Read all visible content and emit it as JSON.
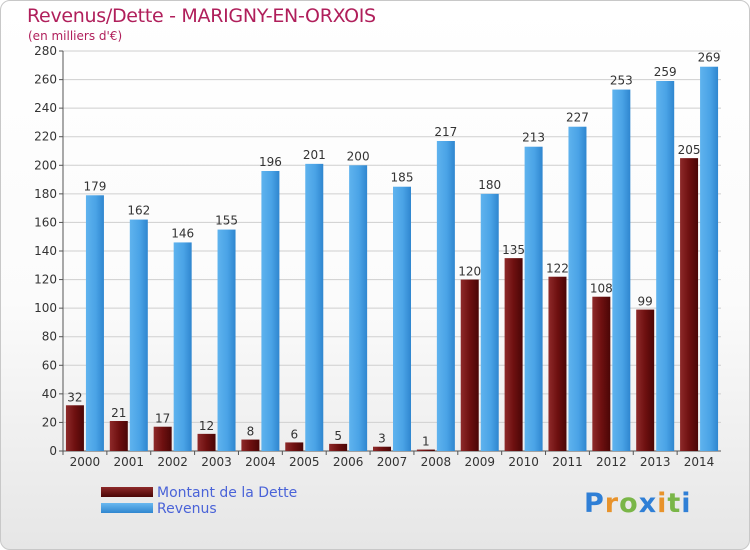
{
  "title": "Revenus/Dette - MARIGNY-EN-ORXOIS",
  "subtitle": "(en milliers d'€)",
  "logo": "Proxiti",
  "colors": {
    "dette": "#7a1414",
    "revenus": "#4aa3e6",
    "title": "#b01f5b",
    "legend_text": "#4a63d8"
  },
  "chart_data": {
    "type": "bar",
    "categories": [
      "2000",
      "2001",
      "2002",
      "2003",
      "2004",
      "2005",
      "2006",
      "2007",
      "2008",
      "2009",
      "2010",
      "2011",
      "2012",
      "2013",
      "2014"
    ],
    "series": [
      {
        "name": "Montant de la Dette",
        "values": [
          32,
          21,
          17,
          12,
          8,
          6,
          5,
          3,
          1,
          120,
          135,
          122,
          108,
          99,
          205
        ]
      },
      {
        "name": "Revenus",
        "values": [
          179,
          162,
          146,
          155,
          196,
          201,
          200,
          185,
          217,
          180,
          213,
          227,
          253,
          259,
          269
        ]
      }
    ],
    "ylim": [
      0,
      280
    ],
    "yticks": [
      0,
      20,
      40,
      60,
      80,
      100,
      120,
      140,
      160,
      180,
      200,
      220,
      240,
      260,
      280
    ],
    "grid": true,
    "legend": "bottom-left"
  }
}
